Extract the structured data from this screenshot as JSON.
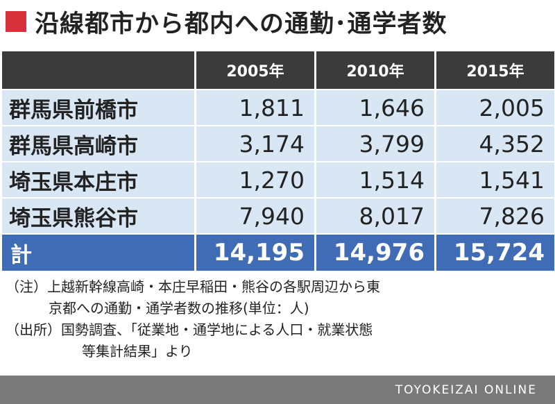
{
  "title": "沿線都市から都内への通勤･通学者数",
  "table": {
    "headers": [
      "",
      "2005年",
      "2010年",
      "2015年"
    ],
    "rows": [
      {
        "label": "群馬県前橋市",
        "values": [
          "1,811",
          "1,646",
          "2,005"
        ]
      },
      {
        "label": "群馬県高崎市",
        "values": [
          "3,174",
          "3,799",
          "4,352"
        ]
      },
      {
        "label": "埼玉県本庄市",
        "values": [
          "1,270",
          "1,514",
          "1,541"
        ]
      },
      {
        "label": "埼玉県熊谷市",
        "values": [
          "7,940",
          "8,017",
          "7,826"
        ]
      }
    ],
    "total": {
      "label": "計",
      "values": [
        "14,195",
        "14,976",
        "15,724"
      ]
    }
  },
  "notes": [
    "（注）上越新幹線高崎・本庄早稲田・熊谷の各駅周辺から東",
    "京都への通勤・通学者数の推移(単位：人)",
    "（出所）国勢調査、「従業地・通学地による人口・就業状態",
    "等集計結果」より"
  ],
  "footer": "TOYOKEIZAI ONLINE",
  "colors": {
    "title_marker": "#d7323b",
    "header_bg": "#3b3b3b",
    "row_bg": "#d9e7f5",
    "total_bg": "#3f6cb4",
    "footer_bg": "#7a7a7a"
  }
}
